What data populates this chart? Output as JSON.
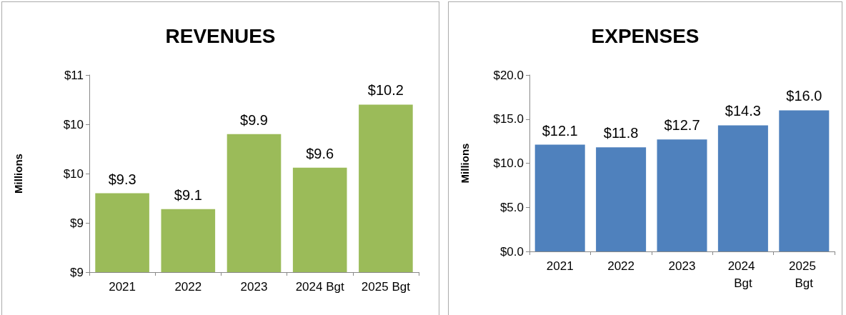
{
  "chart_data": [
    {
      "type": "bar",
      "title": "REVENUES",
      "ylabel": "Millions",
      "categories": [
        "2021",
        "2022",
        "2023",
        "2024 Bgt",
        "2025 Bgt"
      ],
      "values": [
        9.3,
        9.14,
        9.9,
        9.56,
        10.2
      ],
      "value_labels": [
        "$9.3",
        "$9.1",
        "$9.9",
        "$9.6",
        "$10.2"
      ],
      "color": "#9bbb59",
      "ylim": [
        8.5,
        10.5
      ],
      "yticks": [
        {
          "value": 8.5,
          "label": "$9"
        },
        {
          "value": 9.0,
          "label": "$9"
        },
        {
          "value": 9.5,
          "label": "$10"
        },
        {
          "value": 10.0,
          "label": "$10"
        },
        {
          "value": 10.5,
          "label": "$11"
        }
      ],
      "grid": false
    },
    {
      "type": "bar",
      "title": "EXPENSES",
      "ylabel": "Millions",
      "categories": [
        "2021",
        "2022",
        "2023",
        "2024 Bgt",
        "2025 Bgt"
      ],
      "values": [
        12.1,
        11.8,
        12.7,
        14.3,
        16.0
      ],
      "value_labels": [
        "$12.1",
        "$11.8",
        "$12.7",
        "$14.3",
        "$16.0"
      ],
      "color": "#4f81bd",
      "ylim": [
        0,
        20
      ],
      "yticks": [
        {
          "value": 0,
          "label": "$0.0"
        },
        {
          "value": 5,
          "label": "$5.0"
        },
        {
          "value": 10,
          "label": "$10.0"
        },
        {
          "value": 15,
          "label": "$15.0"
        },
        {
          "value": 20,
          "label": "$20.0"
        }
      ],
      "grid": false
    }
  ]
}
